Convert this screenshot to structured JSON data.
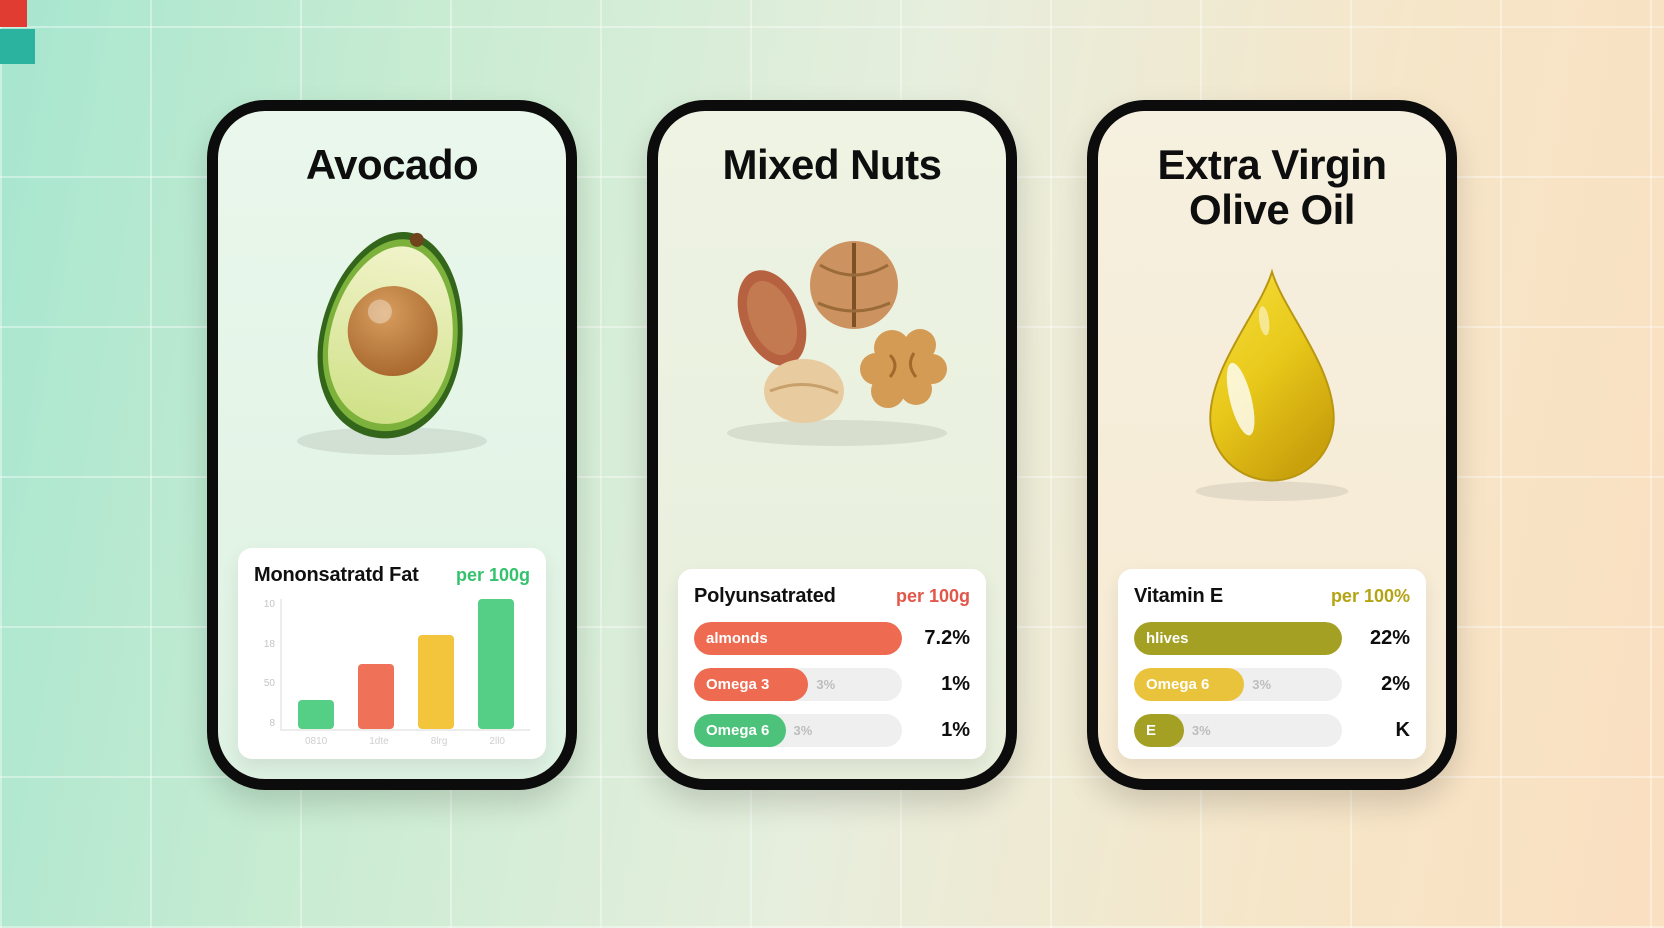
{
  "decor": {
    "red_square": "#e03c31",
    "teal_square": "#2bb3a0"
  },
  "cards": [
    {
      "title": "Avocado",
      "panel": {
        "label": "Mononsatratd Fat",
        "per": "per 100g",
        "per_color": "#35c26e"
      },
      "chart": {
        "yticks": [
          "10",
          "18",
          "50",
          "8"
        ],
        "xticks": [
          "0810",
          "1dte",
          "8lrg",
          "2ll0"
        ],
        "bars": [
          {
            "pct": 22,
            "color": "#55cf85"
          },
          {
            "pct": 50,
            "color": "#ef7157"
          },
          {
            "pct": 72,
            "color": "#f2c53d"
          },
          {
            "pct": 100,
            "color": "#55cf85"
          }
        ]
      }
    },
    {
      "title": "Mixed Nuts",
      "panel": {
        "label": "Polyunsatrated",
        "per": "per 100g",
        "per_color": "#e2574a"
      },
      "rows": [
        {
          "label": "almonds",
          "pct": 100,
          "color": "#ee6a50",
          "track_text": "",
          "value": "7.2%"
        },
        {
          "label": "Omega 3",
          "pct": 55,
          "color": "#ee6a50",
          "track_text": "3%",
          "value": "1%"
        },
        {
          "label": "Omega 6",
          "pct": 44,
          "color": "#4cc27a",
          "track_text": "3%",
          "value": "1%"
        }
      ]
    },
    {
      "title": "Extra Virgin Olive Oil",
      "panel": {
        "label": "Vitamin E",
        "per": "per 100%",
        "per_color": "#b3a414"
      },
      "rows": [
        {
          "label": "hlives",
          "pct": 100,
          "color": "#a3a024",
          "track_text": "",
          "value": "22%"
        },
        {
          "label": "Omega 6",
          "pct": 53,
          "color": "#eac33c",
          "track_text": "3%",
          "value": "2%"
        },
        {
          "label": "E",
          "pct": 24,
          "color": "#a3a024",
          "track_text": "3%",
          "value": "K"
        }
      ]
    }
  ],
  "chart_data": [
    {
      "type": "bar",
      "title": "Mononsatratd Fat",
      "subtitle": "per 100g",
      "categories": [
        "0810",
        "1dte",
        "8lrg",
        "2ll0"
      ],
      "values": [
        22,
        50,
        72,
        100
      ],
      "value_note": "relative bar heights in % of plot, no numeric data labels shown",
      "bar_colors": [
        "#55cf85",
        "#ef7157",
        "#f2c53d",
        "#55cf85"
      ],
      "yticks": [
        "10",
        "18",
        "50",
        "8"
      ],
      "xlabel": "",
      "ylabel": "",
      "ylim": [
        0,
        100
      ],
      "grid": false,
      "legend": false
    },
    {
      "type": "bar",
      "orientation": "horizontal",
      "title": "Polyunsatrated",
      "subtitle": "per 100g",
      "categories": [
        "almonds",
        "Omega 3",
        "Omega 6"
      ],
      "bar_fill_percent": [
        100,
        55,
        44
      ],
      "track_labels": [
        "",
        "3%",
        "3%"
      ],
      "value_labels": [
        "7.2%",
        "1%",
        "1%"
      ],
      "bar_colors": [
        "#ee6a50",
        "#ee6a50",
        "#4cc27a"
      ],
      "grid": false,
      "legend": false
    },
    {
      "type": "bar",
      "orientation": "horizontal",
      "title": "Vitamin E",
      "subtitle": "per 100%",
      "categories": [
        "hlives",
        "Omega 6",
        "E"
      ],
      "bar_fill_percent": [
        100,
        53,
        24
      ],
      "track_labels": [
        "",
        "3%",
        "3%"
      ],
      "value_labels": [
        "22%",
        "2%",
        "K"
      ],
      "bar_colors": [
        "#a3a024",
        "#eac33c",
        "#a3a024"
      ],
      "grid": false,
      "legend": false
    }
  ]
}
